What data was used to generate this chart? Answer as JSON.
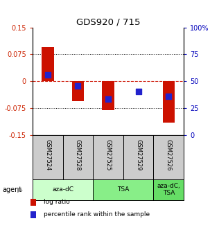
{
  "title": "GDS920 / 715",
  "samples": [
    "GSM27524",
    "GSM27528",
    "GSM27525",
    "GSM27529",
    "GSM27526"
  ],
  "log_ratios": [
    0.095,
    -0.055,
    -0.08,
    0.0,
    -0.115
  ],
  "percentile_values": [
    0.018,
    -0.012,
    -0.05,
    -0.028,
    -0.042
  ],
  "ylim": [
    -0.15,
    0.15
  ],
  "yticks_left": [
    -0.15,
    -0.075,
    0,
    0.075,
    0.15
  ],
  "yticks_left_labels": [
    "-0.15",
    "-0.075",
    "0",
    "0.075",
    "0.15"
  ],
  "yticks_right": [
    0,
    25,
    50,
    75,
    100
  ],
  "yticks_right_vals": [
    -0.15,
    -0.075,
    0,
    0.075,
    0.15
  ],
  "yticks_right_labels": [
    "0",
    "25",
    "50",
    "75",
    "100%"
  ],
  "bar_color": "#CC1100",
  "dot_color": "#2222CC",
  "agent_groups": [
    {
      "label": "aza-dC",
      "span": [
        0,
        2
      ],
      "color": "#CCFFCC"
    },
    {
      "label": "TSA",
      "span": [
        2,
        4
      ],
      "color": "#88EE88"
    },
    {
      "label": "aza-dC,\nTSA",
      "span": [
        4,
        5
      ],
      "color": "#66DD66"
    }
  ],
  "legend_items": [
    {
      "color": "#CC1100",
      "label": "log ratio"
    },
    {
      "color": "#2222CC",
      "label": "percentile rank within the sample"
    }
  ],
  "bar_width": 0.4,
  "dot_size": 40,
  "sample_box_color": "#CCCCCC",
  "left_tick_color": "#CC2200",
  "right_tick_color": "#0000BB",
  "title_fontsize": 9.5
}
